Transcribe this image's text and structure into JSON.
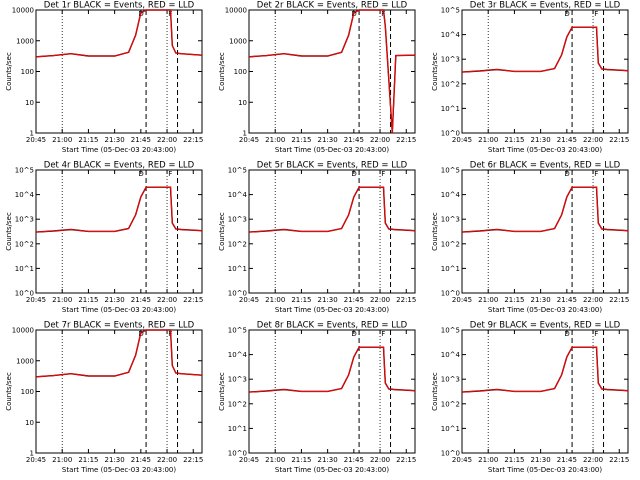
{
  "xtick_labels": [
    "20:45",
    "21:00",
    "21:15",
    "21:30",
    "21:45",
    "22:00",
    "22:15"
  ],
  "xlabel": "Start Time (05-Dec-03 20:43:00)",
  "ylabel": "Counts/sec",
  "colors": {
    "events": "#000000",
    "lld": "#ff0000",
    "background": "#ffffff"
  },
  "legend_text": "BLACK = Events, RED = LLD",
  "marker_labels": [
    "D",
    "F"
  ],
  "chart_data": [
    {
      "type": "line",
      "title": "Det 1r BLACK = Events, RED = LLD",
      "xlabel": "Start Time (05-Dec-03 20:43:00)",
      "ylabel": "Counts/sec",
      "x_range": [
        "20:45",
        "22:20"
      ],
      "ylim": [
        1,
        10000
      ],
      "yscale": "log",
      "ytick_labels": [
        "1",
        "10",
        "100",
        "1000",
        "10000"
      ],
      "series": [
        {
          "name": "Events",
          "color": "#000000",
          "x": [
            "20:45",
            "20:55",
            "21:05",
            "21:15",
            "21:30",
            "21:38",
            "21:42",
            "21:45",
            "21:48",
            "22:02",
            "22:03",
            "22:05",
            "22:08",
            "22:20"
          ],
          "values": [
            300,
            330,
            380,
            320,
            320,
            420,
            1500,
            8000,
            10000,
            10000,
            700,
            400,
            380,
            340
          ]
        },
        {
          "name": "LLD",
          "color": "#ff0000",
          "x": [
            "20:45",
            "20:55",
            "21:05",
            "21:15",
            "21:30",
            "21:38",
            "21:42",
            "21:45",
            "21:48",
            "22:02",
            "22:03",
            "22:05",
            "22:08",
            "22:20"
          ],
          "values": [
            300,
            330,
            380,
            320,
            320,
            420,
            1500,
            8000,
            10000,
            10000,
            700,
            400,
            380,
            340
          ]
        }
      ]
    },
    {
      "type": "line",
      "title": "Det 2r BLACK = Events, RED = LLD",
      "xlabel": "Start Time (05-Dec-03 20:43:00)",
      "ylabel": "Counts/sec",
      "x_range": [
        "20:45",
        "22:20"
      ],
      "ylim": [
        1,
        10000
      ],
      "yscale": "log",
      "ytick_labels": [
        "1",
        "10",
        "100",
        "1000",
        "10000"
      ],
      "series": [
        {
          "name": "Events",
          "color": "#000000",
          "x": [
            "20:45",
            "20:55",
            "21:05",
            "21:15",
            "21:30",
            "21:38",
            "21:42",
            "21:45",
            "21:48",
            "22:02",
            "22:03",
            "22:07",
            "22:09",
            "22:20"
          ],
          "values": [
            300,
            330,
            380,
            320,
            320,
            420,
            1500,
            8000,
            10000,
            10000,
            3000,
            1,
            330,
            340
          ]
        },
        {
          "name": "LLD",
          "color": "#ff0000",
          "x": [
            "20:45",
            "20:55",
            "21:05",
            "21:15",
            "21:30",
            "21:38",
            "21:42",
            "21:45",
            "21:48",
            "22:02",
            "22:03",
            "22:07",
            "22:09",
            "22:20"
          ],
          "values": [
            300,
            330,
            380,
            320,
            320,
            420,
            1500,
            8000,
            10000,
            10000,
            3000,
            1,
            330,
            340
          ]
        }
      ]
    },
    {
      "type": "line",
      "title": "Det 3r BLACK = Events, RED = LLD",
      "xlabel": "Start Time (05-Dec-03 20:43:00)",
      "ylabel": "Counts/sec",
      "x_range": [
        "20:45",
        "22:20"
      ],
      "ylim": [
        1,
        100000
      ],
      "yscale": "log",
      "ytick_labels": [
        "10^0",
        "10^1",
        "10^2",
        "10^3",
        "10^4",
        "10^5"
      ],
      "series": [
        {
          "name": "Events",
          "color": "#000000",
          "x": [
            "20:45",
            "20:55",
            "21:05",
            "21:15",
            "21:30",
            "21:38",
            "21:42",
            "21:45",
            "21:48",
            "22:02",
            "22:03",
            "22:05",
            "22:08",
            "22:20"
          ],
          "values": [
            300,
            330,
            380,
            320,
            320,
            420,
            1500,
            8000,
            20000,
            20000,
            700,
            400,
            380,
            340
          ]
        },
        {
          "name": "LLD",
          "color": "#ff0000",
          "x": [
            "20:45",
            "20:55",
            "21:05",
            "21:15",
            "21:30",
            "21:38",
            "21:42",
            "21:45",
            "21:48",
            "22:02",
            "22:03",
            "22:05",
            "22:08",
            "22:20"
          ],
          "values": [
            300,
            330,
            380,
            320,
            320,
            420,
            1500,
            8000,
            20000,
            20000,
            700,
            400,
            380,
            340
          ]
        }
      ]
    },
    {
      "type": "line",
      "title": "Det 4r BLACK = Events, RED = LLD",
      "xlabel": "Start Time (05-Dec-03 20:43:00)",
      "ylabel": "Counts/sec",
      "x_range": [
        "20:45",
        "22:20"
      ],
      "ylim": [
        1,
        100000
      ],
      "yscale": "log",
      "ytick_labels": [
        "10^0",
        "10^1",
        "10^2",
        "10^3",
        "10^4",
        "10^5"
      ],
      "series": [
        {
          "name": "Events",
          "color": "#000000",
          "x": [
            "20:45",
            "20:55",
            "21:05",
            "21:15",
            "21:30",
            "21:38",
            "21:42",
            "21:45",
            "21:48",
            "22:02",
            "22:03",
            "22:05",
            "22:08",
            "22:20"
          ],
          "values": [
            300,
            330,
            380,
            320,
            320,
            420,
            1500,
            8000,
            20000,
            20000,
            700,
            400,
            380,
            340
          ]
        },
        {
          "name": "LLD",
          "color": "#ff0000",
          "x": [
            "20:45",
            "20:55",
            "21:05",
            "21:15",
            "21:30",
            "21:38",
            "21:42",
            "21:45",
            "21:48",
            "22:02",
            "22:03",
            "22:05",
            "22:08",
            "22:20"
          ],
          "values": [
            300,
            330,
            380,
            320,
            320,
            420,
            1500,
            8000,
            20000,
            20000,
            700,
            400,
            380,
            340
          ]
        }
      ]
    },
    {
      "type": "line",
      "title": "Det 5r BLACK = Events, RED = LLD",
      "xlabel": "Start Time (05-Dec-03 20:43:00)",
      "ylabel": "Counts/sec",
      "x_range": [
        "20:45",
        "22:20"
      ],
      "ylim": [
        1,
        100000
      ],
      "yscale": "log",
      "ytick_labels": [
        "10^0",
        "10^1",
        "10^2",
        "10^3",
        "10^4",
        "10^5"
      ],
      "series": [
        {
          "name": "Events",
          "color": "#000000",
          "x": [
            "20:45",
            "20:55",
            "21:05",
            "21:15",
            "21:30",
            "21:38",
            "21:42",
            "21:45",
            "21:48",
            "22:02",
            "22:03",
            "22:05",
            "22:08",
            "22:20"
          ],
          "values": [
            300,
            330,
            380,
            320,
            320,
            420,
            1500,
            8000,
            20000,
            20000,
            700,
            400,
            380,
            340
          ]
        },
        {
          "name": "LLD",
          "color": "#ff0000",
          "x": [
            "20:45",
            "20:55",
            "21:05",
            "21:15",
            "21:30",
            "21:38",
            "21:42",
            "21:45",
            "21:48",
            "22:02",
            "22:03",
            "22:05",
            "22:08",
            "22:20"
          ],
          "values": [
            300,
            330,
            380,
            320,
            320,
            420,
            1500,
            8000,
            20000,
            20000,
            700,
            400,
            380,
            340
          ]
        }
      ]
    },
    {
      "type": "line",
      "title": "Det 6r BLACK = Events, RED = LLD",
      "xlabel": "Start Time (05-Dec-03 20:43:00)",
      "ylabel": "Counts/sec",
      "x_range": [
        "20:45",
        "22:20"
      ],
      "ylim": [
        1,
        100000
      ],
      "yscale": "log",
      "ytick_labels": [
        "10^0",
        "10^1",
        "10^2",
        "10^3",
        "10^4",
        "10^5"
      ],
      "series": [
        {
          "name": "Events",
          "color": "#000000",
          "x": [
            "20:45",
            "20:55",
            "21:05",
            "21:15",
            "21:30",
            "21:38",
            "21:42",
            "21:45",
            "21:48",
            "22:02",
            "22:03",
            "22:05",
            "22:08",
            "22:20"
          ],
          "values": [
            300,
            330,
            380,
            320,
            320,
            420,
            1500,
            8000,
            20000,
            20000,
            700,
            400,
            380,
            340
          ]
        },
        {
          "name": "LLD",
          "color": "#ff0000",
          "x": [
            "20:45",
            "20:55",
            "21:05",
            "21:15",
            "21:30",
            "21:38",
            "21:42",
            "21:45",
            "21:48",
            "22:02",
            "22:03",
            "22:05",
            "22:08",
            "22:20"
          ],
          "values": [
            300,
            330,
            380,
            320,
            320,
            420,
            1500,
            8000,
            20000,
            20000,
            700,
            400,
            380,
            340
          ]
        }
      ]
    },
    {
      "type": "line",
      "title": "Det 7r BLACK = Events, RED = LLD",
      "xlabel": "Start Time (05-Dec-03 20:43:00)",
      "ylabel": "Counts/sec",
      "x_range": [
        "20:45",
        "22:20"
      ],
      "ylim": [
        1,
        10000
      ],
      "yscale": "log",
      "ytick_labels": [
        "1",
        "10",
        "100",
        "1000",
        "10000"
      ],
      "series": [
        {
          "name": "Events",
          "color": "#000000",
          "x": [
            "20:45",
            "20:55",
            "21:05",
            "21:15",
            "21:30",
            "21:38",
            "21:42",
            "21:45",
            "21:48",
            "22:02",
            "22:03",
            "22:05",
            "22:08",
            "22:20"
          ],
          "values": [
            300,
            330,
            380,
            320,
            320,
            420,
            1500,
            8000,
            10000,
            10000,
            700,
            400,
            380,
            340
          ]
        },
        {
          "name": "LLD",
          "color": "#ff0000",
          "x": [
            "20:45",
            "20:55",
            "21:05",
            "21:15",
            "21:30",
            "21:38",
            "21:42",
            "21:45",
            "21:48",
            "22:02",
            "22:03",
            "22:05",
            "22:08",
            "22:20"
          ],
          "values": [
            300,
            330,
            380,
            320,
            320,
            420,
            1500,
            8000,
            10000,
            10000,
            700,
            400,
            380,
            340
          ]
        }
      ]
    },
    {
      "type": "line",
      "title": "Det 8r BLACK = Events, RED = LLD",
      "xlabel": "Start Time (05-Dec-03 20:43:00)",
      "ylabel": "Counts/sec",
      "x_range": [
        "20:45",
        "22:20"
      ],
      "ylim": [
        1,
        100000
      ],
      "yscale": "log",
      "ytick_labels": [
        "10^0",
        "10^1",
        "10^2",
        "10^3",
        "10^4",
        "10^5"
      ],
      "series": [
        {
          "name": "Events",
          "color": "#000000",
          "x": [
            "20:45",
            "20:55",
            "21:05",
            "21:15",
            "21:30",
            "21:38",
            "21:42",
            "21:45",
            "21:48",
            "22:02",
            "22:03",
            "22:05",
            "22:08",
            "22:20"
          ],
          "values": [
            300,
            330,
            380,
            320,
            320,
            420,
            1500,
            8000,
            20000,
            20000,
            700,
            400,
            380,
            340
          ]
        },
        {
          "name": "LLD",
          "color": "#ff0000",
          "x": [
            "20:45",
            "20:55",
            "21:05",
            "21:15",
            "21:30",
            "21:38",
            "21:42",
            "21:45",
            "21:48",
            "22:02",
            "22:03",
            "22:05",
            "22:08",
            "22:20"
          ],
          "values": [
            300,
            330,
            380,
            320,
            320,
            420,
            1500,
            8000,
            20000,
            20000,
            700,
            400,
            380,
            340
          ]
        }
      ]
    },
    {
      "type": "line",
      "title": "Det 9r BLACK = Events, RED = LLD",
      "xlabel": "Start Time (05-Dec-03 20:43:00)",
      "ylabel": "Counts/sec",
      "x_range": [
        "20:45",
        "22:20"
      ],
      "ylim": [
        1,
        100000
      ],
      "yscale": "log",
      "ytick_labels": [
        "10^0",
        "10^1",
        "10^2",
        "10^3",
        "10^4",
        "10^5"
      ],
      "series": [
        {
          "name": "Events",
          "color": "#000000",
          "x": [
            "20:45",
            "20:55",
            "21:05",
            "21:15",
            "21:30",
            "21:38",
            "21:42",
            "21:45",
            "21:48",
            "22:02",
            "22:03",
            "22:05",
            "22:08",
            "22:20"
          ],
          "values": [
            300,
            330,
            380,
            320,
            320,
            420,
            1500,
            8000,
            20000,
            20000,
            700,
            400,
            380,
            340
          ]
        },
        {
          "name": "LLD",
          "color": "#ff0000",
          "x": [
            "20:45",
            "20:55",
            "21:05",
            "21:15",
            "21:30",
            "21:38",
            "21:42",
            "21:45",
            "21:48",
            "22:02",
            "22:03",
            "22:05",
            "22:08",
            "22:20"
          ],
          "values": [
            300,
            330,
            380,
            320,
            320,
            420,
            1500,
            8000,
            20000,
            20000,
            700,
            400,
            380,
            340
          ]
        }
      ]
    }
  ]
}
